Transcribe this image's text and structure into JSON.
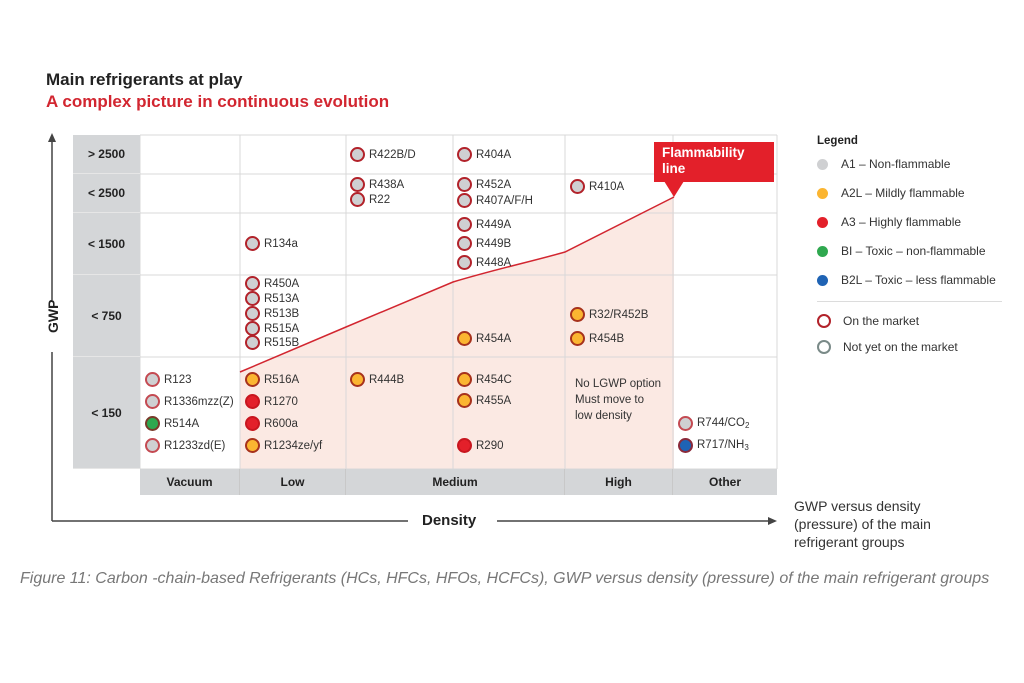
{
  "header": {
    "title": "Main refrigerants at play",
    "subtitle": "A complex picture in continuous evolution"
  },
  "chart_data": {
    "type": "table",
    "title": "Main refrigerants at play",
    "subtitle": "A complex picture in continuous evolution",
    "xlabel": "Density",
    "ylabel": "GWP",
    "x_categories": [
      "Vacuum",
      "Low",
      "Medium",
      "High",
      "Other"
    ],
    "y_categories": [
      "> 2500",
      "< 2500",
      "< 1500",
      "< 750",
      "< 150"
    ],
    "annotation": "Flammability line",
    "note": {
      "density": "High",
      "gwp": "< 150",
      "text": [
        "No LGWP option",
        "Must move to",
        "low density"
      ]
    },
    "refrigerants": [
      {
        "name": "R422B/D",
        "density": "Medium",
        "gwp": "> 2500",
        "class": "A1",
        "market": "on"
      },
      {
        "name": "R404A",
        "density": "Medium",
        "gwp": "> 2500",
        "class": "A1",
        "market": "on"
      },
      {
        "name": "R438A",
        "density": "Medium",
        "gwp": "< 2500",
        "class": "A1",
        "market": "on"
      },
      {
        "name": "R22",
        "density": "Medium",
        "gwp": "< 2500",
        "class": "A1",
        "market": "on"
      },
      {
        "name": "R452A",
        "density": "Medium",
        "gwp": "< 2500",
        "class": "A1",
        "market": "on"
      },
      {
        "name": "R407A/F/H",
        "density": "Medium",
        "gwp": "< 2500",
        "class": "A1",
        "market": "on"
      },
      {
        "name": "R410A",
        "density": "High",
        "gwp": "< 2500",
        "class": "A1",
        "market": "on"
      },
      {
        "name": "R134a",
        "density": "Low",
        "gwp": "< 1500",
        "class": "A1",
        "market": "on"
      },
      {
        "name": "R449A",
        "density": "Medium",
        "gwp": "< 1500",
        "class": "A1",
        "market": "on"
      },
      {
        "name": "R449B",
        "density": "Medium",
        "gwp": "< 1500",
        "class": "A1",
        "market": "on"
      },
      {
        "name": "R448A",
        "density": "Medium",
        "gwp": "< 1500",
        "class": "A1",
        "market": "on"
      },
      {
        "name": "R450A",
        "density": "Low",
        "gwp": "< 750",
        "class": "A1",
        "market": "on"
      },
      {
        "name": "R513A",
        "density": "Low",
        "gwp": "< 750",
        "class": "A1",
        "market": "on"
      },
      {
        "name": "R513B",
        "density": "Low",
        "gwp": "< 750",
        "class": "A1",
        "market": "on"
      },
      {
        "name": "R515A",
        "density": "Low",
        "gwp": "< 750",
        "class": "A1",
        "market": "on"
      },
      {
        "name": "R515B",
        "density": "Low",
        "gwp": "< 750",
        "class": "A1",
        "market": "on"
      },
      {
        "name": "R454A",
        "density": "Medium",
        "gwp": "< 750",
        "class": "A2L",
        "market": "on"
      },
      {
        "name": "R32/R452B",
        "density": "High",
        "gwp": "< 750",
        "class": "A2L",
        "market": "on"
      },
      {
        "name": "R454B",
        "density": "High",
        "gwp": "< 750",
        "class": "A2L",
        "market": "on"
      },
      {
        "name": "R123",
        "density": "Vacuum",
        "gwp": "< 150",
        "class": "A1",
        "market": "on"
      },
      {
        "name": "R1336mzz(Z)",
        "density": "Vacuum",
        "gwp": "< 150",
        "class": "A1",
        "market": "on"
      },
      {
        "name": "R514A",
        "density": "Vacuum",
        "gwp": "< 150",
        "class": "B1",
        "market": "on"
      },
      {
        "name": "R1233zd(E)",
        "density": "Vacuum",
        "gwp": "< 150",
        "class": "A1",
        "market": "on"
      },
      {
        "name": "R516A",
        "density": "Low",
        "gwp": "< 150",
        "class": "A2L",
        "market": "on"
      },
      {
        "name": "R1270",
        "density": "Low",
        "gwp": "< 150",
        "class": "A3",
        "market": "on"
      },
      {
        "name": "R600a",
        "density": "Low",
        "gwp": "< 150",
        "class": "A3",
        "market": "on"
      },
      {
        "name": "R1234ze/yf",
        "density": "Low",
        "gwp": "< 150",
        "class": "A2L",
        "market": "on"
      },
      {
        "name": "R444B",
        "density": "Medium",
        "gwp": "< 150",
        "class": "A2L",
        "market": "on"
      },
      {
        "name": "R454C",
        "density": "Medium",
        "gwp": "< 150",
        "class": "A2L",
        "market": "on"
      },
      {
        "name": "R455A",
        "density": "Medium",
        "gwp": "< 150",
        "class": "A2L",
        "market": "on"
      },
      {
        "name": "R290",
        "density": "Medium",
        "gwp": "< 150",
        "class": "A3",
        "market": "on"
      },
      {
        "name": "R744/CO2",
        "density": "Other",
        "gwp": "< 150",
        "class": "A1",
        "market": "on"
      },
      {
        "name": "R717/NH3",
        "density": "Other",
        "gwp": "< 150",
        "class": "B2L",
        "market": "on"
      }
    ],
    "legend": [
      {
        "key": "A1",
        "label": "A1 – Non-flammable",
        "color": "#cfd0d2"
      },
      {
        "key": "A2L",
        "label": "A2L –  Mildly flammable",
        "color": "#fbb531"
      },
      {
        "key": "A3",
        "label": "A3 –  Highly flammable",
        "color": "#e3202a"
      },
      {
        "key": "B1",
        "label": "BI – Toxic – non-flammable",
        "color": "#2fa84f"
      },
      {
        "key": "B2L",
        "label": "B2L – Toxic – less flammable",
        "color": "#1f63b4"
      }
    ],
    "market_legend": [
      {
        "key": "on",
        "label": "On the market",
        "color": "#b2222a"
      },
      {
        "key": "not_yet",
        "label": "Not yet on the market",
        "color": "#7a8a88"
      }
    ],
    "legend_position": "right"
  },
  "labels": {
    "gwp_axis": "GWP",
    "density_axis": "Density",
    "legend_title": "Legend",
    "flammability": [
      "Flammability",
      "line"
    ],
    "side_note": [
      "GWP versus density",
      "(pressure) of the main",
      "refrigerant groups"
    ],
    "caption": "Figure 11: Carbon -chain-based Refrigerants (HCs, HFCs, HFOs, HCFCs), GWP versus density (pressure) of the main refrigerant groups"
  },
  "colors": {
    "accent_red": "#d22630",
    "ring_red": "#b2222a",
    "shade": "#fbe9e3",
    "label_bg": "#d4d6d8"
  }
}
